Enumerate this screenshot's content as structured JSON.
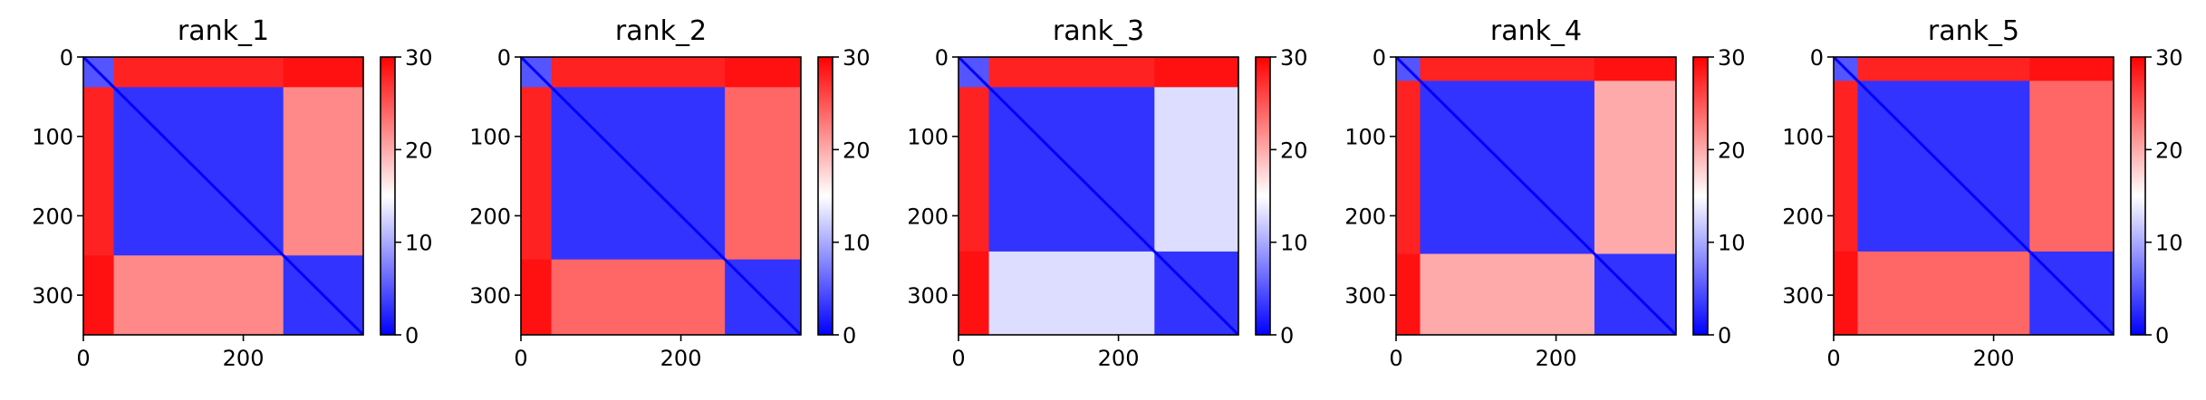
{
  "chart_data": {
    "type": "heatmap",
    "colormap": "bwr",
    "colors": {
      "low": "#0000ff",
      "mid": "#ffffff",
      "high": "#ff0000"
    },
    "grid": false,
    "xlim": [
      0,
      350
    ],
    "ylim": [
      350,
      0
    ],
    "x_ticks": [
      0,
      200
    ],
    "y_ticks": [
      0,
      100,
      200,
      300
    ],
    "colorbar": {
      "min": 0,
      "max": 30,
      "ticks": [
        0,
        10,
        20,
        30
      ]
    },
    "panels": [
      {
        "title": "rank_1",
        "blocks": [
          [
            0,
            38
          ],
          [
            38,
            250
          ],
          [
            250,
            350
          ]
        ],
        "block_values": [
          [
            5,
            28,
            29
          ],
          [
            28,
            3,
            22
          ],
          [
            29,
            22,
            3
          ]
        ]
      },
      {
        "title": "rank_2",
        "blocks": [
          [
            0,
            38
          ],
          [
            38,
            255
          ],
          [
            255,
            350
          ]
        ],
        "block_values": [
          [
            5,
            28,
            29
          ],
          [
            28,
            3,
            24
          ],
          [
            29,
            24,
            3
          ]
        ]
      },
      {
        "title": "rank_3",
        "blocks": [
          [
            0,
            38
          ],
          [
            38,
            245
          ],
          [
            245,
            350
          ]
        ],
        "block_values": [
          [
            5,
            28,
            29
          ],
          [
            28,
            3,
            13
          ],
          [
            29,
            13,
            3
          ]
        ]
      },
      {
        "title": "rank_4",
        "blocks": [
          [
            0,
            30
          ],
          [
            30,
            248
          ],
          [
            248,
            350
          ]
        ],
        "block_values": [
          [
            5,
            28,
            29
          ],
          [
            28,
            3,
            20
          ],
          [
            29,
            20,
            3
          ]
        ]
      },
      {
        "title": "rank_5",
        "blocks": [
          [
            0,
            30
          ],
          [
            30,
            245
          ],
          [
            245,
            350
          ]
        ],
        "block_values": [
          [
            5,
            28,
            29
          ],
          [
            28,
            3,
            24
          ],
          [
            29,
            24,
            3
          ]
        ]
      }
    ]
  }
}
